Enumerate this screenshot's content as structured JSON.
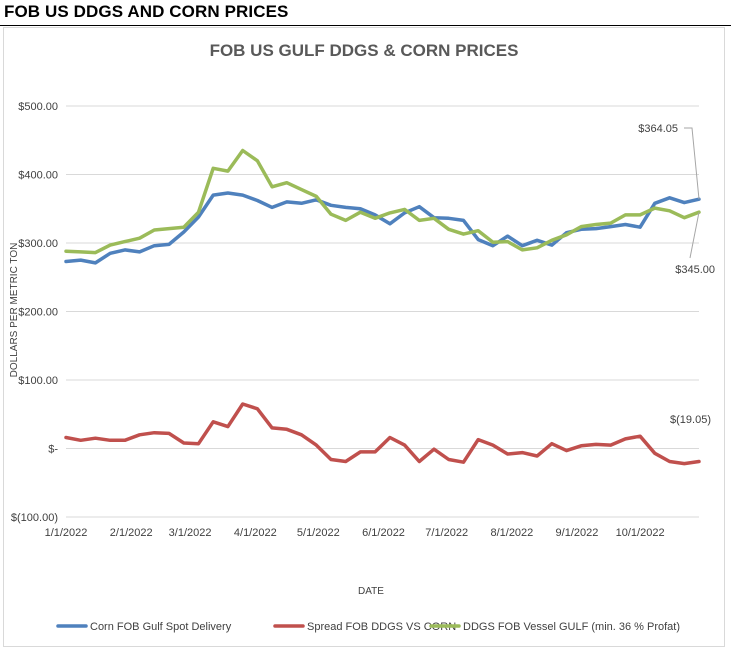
{
  "header": {
    "title": "FOB US DDGS AND CORN PRICES"
  },
  "colors": {
    "corn": "#4f81bd",
    "spread": "#c0504d",
    "ddgs": "#9bbb59",
    "grid": "#d9d9d9"
  },
  "chart_data": {
    "type": "line",
    "title": "FOB US GULF DDGS & CORN PRICES",
    "xlabel": "DATE",
    "ylabel": "DOLLARS PER METRIC TON",
    "ylim": [
      -100,
      500
    ],
    "y_ticks": [
      500,
      400,
      300,
      200,
      100,
      0,
      -100
    ],
    "y_tick_labels": [
      "$500.00",
      "$400.00",
      "$300.00",
      "$200.00",
      "$100.00",
      "$-",
      "$(100.00)"
    ],
    "x_tick_labels": [
      "1/1/2022",
      "2/1/2022",
      "3/1/2022",
      "4/1/2022",
      "5/1/2022",
      "6/1/2022",
      "7/1/2022",
      "8/1/2022",
      "9/1/2022",
      "10/1/2022"
    ],
    "x_tick_index": [
      0,
      4.43,
      8.43,
      12.86,
      17.14,
      21.57,
      25.86,
      30.29,
      34.71,
      39
    ],
    "grid": "horizontal",
    "legend_position": "bottom",
    "series": [
      {
        "name": "Corn FOB Gulf Spot Delivery",
        "color_key": "corn",
        "values": [
          273,
          275,
          271,
          285,
          290,
          287,
          296,
          298,
          316,
          338,
          370,
          373,
          370,
          362,
          352,
          360,
          358,
          363,
          355,
          352,
          350,
          341,
          328,
          344,
          353,
          337,
          336,
          333,
          305,
          296,
          310,
          296,
          304,
          297,
          315,
          320,
          321,
          324,
          327,
          323,
          358,
          366,
          359,
          364
        ]
      },
      {
        "name": "Spread FOB DDGS VS CORN",
        "color_key": "spread",
        "values": [
          16,
          12,
          15,
          12,
          12,
          20,
          23,
          22,
          8,
          7,
          39,
          32,
          65,
          58,
          30,
          28,
          20,
          5,
          -16,
          -19,
          -5,
          -5,
          16,
          5,
          -19,
          -1,
          -16,
          -20,
          13,
          5,
          -8,
          -6,
          -11,
          7,
          -3,
          4,
          6,
          5,
          14,
          18,
          -7,
          -19,
          -22,
          -19
        ]
      },
      {
        "name": "DDGS FOB Vessel GULF  (min. 36 % Profat)",
        "color_key": "ddgs",
        "values": [
          288,
          287,
          286,
          297,
          302,
          307,
          319,
          321,
          323,
          345,
          409,
          405,
          435,
          420,
          382,
          388,
          378,
          368,
          342,
          333,
          345,
          336,
          344,
          349,
          333,
          336,
          320,
          313,
          318,
          301,
          302,
          290,
          293,
          304,
          312,
          324,
          327,
          329,
          341,
          341,
          351,
          347,
          337,
          345
        ]
      }
    ],
    "annotations": [
      {
        "text": "$364.05",
        "series": "corn"
      },
      {
        "text": "$345.00",
        "series": "ddgs"
      },
      {
        "text": "$(19.05)",
        "series": "spread"
      }
    ]
  }
}
